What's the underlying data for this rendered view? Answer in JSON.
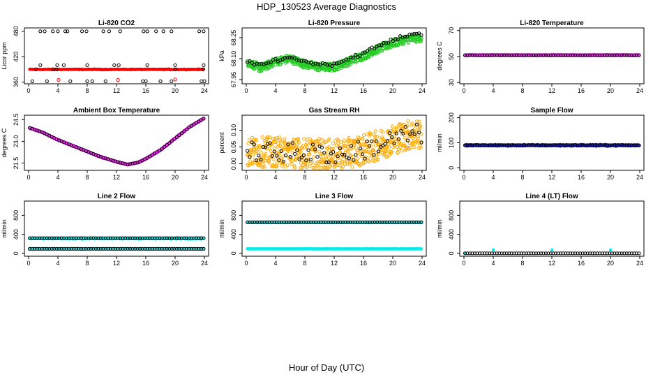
{
  "figure": {
    "title": "HDP_130523  Average Diagnostics",
    "xlabel": "Hour of Day (UTC)"
  },
  "colors": {
    "red": "#ff0000",
    "green": "#22cc22",
    "magenta": "#ff22ff",
    "orange": "#ffaa00",
    "blue": "#1a1acc",
    "cyan": "#00eeee",
    "black": "#000000"
  },
  "chart_data": [
    {
      "id": "co2",
      "type": "scatter",
      "title": "Li-820 CO2",
      "ylabel": "Licor ppm",
      "xlim": [
        0,
        24
      ],
      "ylim": [
        356,
        488
      ],
      "xticks": [
        0,
        4,
        8,
        12,
        16,
        20,
        24
      ],
      "yticks": [
        360,
        420,
        480
      ],
      "yticklabels": [
        "360",
        "420",
        "480"
      ],
      "series": [
        {
          "name": "avg",
          "color": "red",
          "shape": "dot",
          "synth": "flat",
          "base": 390,
          "amp": 1.2,
          "n": 290
        },
        {
          "name": "red-circles",
          "color": "red",
          "shape": "circle",
          "points": [
            [
              4.1,
              365
            ],
            [
              12.2,
              365
            ],
            [
              20.0,
              366
            ]
          ]
        },
        {
          "name": "black-circles",
          "color": "black",
          "shape": "circle",
          "points": [
            [
              1.0,
              390
            ],
            [
              1.6,
              480
            ],
            [
              2.2,
              480
            ],
            [
              3.3,
              480
            ],
            [
              4.0,
              480
            ],
            [
              5.0,
              480
            ],
            [
              5.3,
              480
            ],
            [
              7.3,
              480
            ],
            [
              7.9,
              480
            ],
            [
              10.2,
              480
            ],
            [
              11.0,
              480
            ],
            [
              12.5,
              480
            ],
            [
              15.7,
              480
            ],
            [
              16.2,
              480
            ],
            [
              17.4,
              480
            ],
            [
              18.4,
              480
            ],
            [
              19.5,
              480
            ],
            [
              23.3,
              480
            ],
            [
              23.9,
              480
            ],
            [
              1.6,
              400
            ],
            [
              3.3,
              390
            ],
            [
              3.8,
              390
            ],
            [
              3.9,
              400
            ],
            [
              4.8,
              400
            ],
            [
              8.0,
              400
            ],
            [
              11.7,
              400
            ],
            [
              12.3,
              400
            ],
            [
              16.2,
              400
            ],
            [
              20.0,
              400
            ],
            [
              20.0,
              390
            ],
            [
              23.9,
              400
            ],
            [
              23.8,
              390
            ],
            [
              0.5,
              362
            ],
            [
              2.5,
              362
            ],
            [
              5.7,
              362
            ],
            [
              8.0,
              362
            ],
            [
              8.7,
              362
            ],
            [
              10.5,
              362
            ],
            [
              15.6,
              362
            ],
            [
              16.0,
              362
            ],
            [
              18.0,
              362
            ],
            [
              19.5,
              362
            ],
            [
              23.6,
              362
            ],
            [
              24.0,
              362
            ]
          ]
        }
      ]
    },
    {
      "id": "pressure",
      "type": "scatter",
      "title": "Li-820 Pressure",
      "ylabel": "kPa",
      "xlim": [
        0,
        24
      ],
      "ylim": [
        67.92,
        68.32
      ],
      "xticks": [
        0,
        4,
        8,
        12,
        16,
        20,
        24
      ],
      "yticks": [
        67.95,
        68.1,
        68.25
      ],
      "yticklabels": [
        "67.95",
        "68.10",
        "68.25"
      ],
      "series": [
        {
          "name": "band",
          "color": "green",
          "shape": "circle",
          "synth": "band",
          "knots": [
            [
              0,
              68.08
            ],
            [
              2,
              68.03
            ],
            [
              4,
              68.08
            ],
            [
              6,
              68.1
            ],
            [
              8,
              68.06
            ],
            [
              10,
              68.04
            ],
            [
              12,
              68.04
            ],
            [
              14,
              68.08
            ],
            [
              16,
              68.12
            ],
            [
              18,
              68.17
            ],
            [
              20,
              68.21
            ],
            [
              22,
              68.24
            ],
            [
              24,
              68.25
            ]
          ],
          "spread": 0.028,
          "n": 560
        },
        {
          "name": "avg",
          "color": "black",
          "shape": "circle",
          "synth": "curve",
          "knots": [
            [
              0,
              68.08
            ],
            [
              2,
              68.05
            ],
            [
              4,
              68.09
            ],
            [
              6,
              68.11
            ],
            [
              8,
              68.08
            ],
            [
              10,
              68.06
            ],
            [
              12,
              68.06
            ],
            [
              14,
              68.1
            ],
            [
              16,
              68.14
            ],
            [
              18,
              68.19
            ],
            [
              20,
              68.23
            ],
            [
              22,
              68.27
            ],
            [
              24,
              68.28
            ]
          ],
          "spread": 0.018,
          "n": 75
        }
      ]
    },
    {
      "id": "temperature",
      "type": "scatter",
      "title": "Li-820 Temperature",
      "ylabel": "degrees C",
      "xlim": [
        0,
        24
      ],
      "ylim": [
        29,
        72
      ],
      "xticks": [
        0,
        4,
        8,
        12,
        16,
        20,
        24
      ],
      "yticks": [
        30,
        50,
        70
      ],
      "yticklabels": [
        "30",
        "50",
        "70"
      ],
      "series": [
        {
          "name": "band",
          "color": "magenta",
          "shape": "circle",
          "synth": "flat",
          "base": 51,
          "amp": 0.3,
          "n": 290
        },
        {
          "name": "avg",
          "color": "black",
          "shape": "circle",
          "synth": "flat",
          "base": 51,
          "amp": 0.1,
          "n": 72
        }
      ]
    },
    {
      "id": "ambient",
      "type": "scatter",
      "title": "Ambient Box Temperature",
      "ylabel": "degrees C",
      "xlim": [
        0,
        24
      ],
      "ylim": [
        21.0,
        24.8
      ],
      "xticks": [
        0,
        4,
        8,
        12,
        16,
        20,
        24
      ],
      "yticks": [
        21.5,
        23.0,
        24.5
      ],
      "yticklabels": [
        "21.5",
        "23.0",
        "24.5"
      ],
      "series": [
        {
          "name": "band",
          "color": "magenta",
          "shape": "circle",
          "synth": "curve",
          "knots": [
            [
              0,
              23.95
            ],
            [
              2,
              23.6
            ],
            [
              4,
              23.1
            ],
            [
              6,
              22.7
            ],
            [
              8,
              22.3
            ],
            [
              10,
              21.9
            ],
            [
              12,
              21.6
            ],
            [
              13.5,
              21.4
            ],
            [
              15,
              21.55
            ],
            [
              16,
              21.8
            ],
            [
              18,
              22.4
            ],
            [
              20,
              23.2
            ],
            [
              22,
              24.0
            ],
            [
              24,
              24.6
            ]
          ],
          "spread": 0.03,
          "n": 290
        },
        {
          "name": "avg",
          "color": "black",
          "shape": "circle",
          "synth": "curve",
          "knots": [
            [
              0,
              23.95
            ],
            [
              2,
              23.6
            ],
            [
              4,
              23.1
            ],
            [
              6,
              22.7
            ],
            [
              8,
              22.3
            ],
            [
              10,
              21.9
            ],
            [
              12,
              21.6
            ],
            [
              13.5,
              21.4
            ],
            [
              15,
              21.55
            ],
            [
              16,
              21.8
            ],
            [
              18,
              22.4
            ],
            [
              20,
              23.2
            ],
            [
              22,
              24.0
            ],
            [
              24,
              24.6
            ]
          ],
          "spread": 0.0,
          "n": 72
        }
      ]
    },
    {
      "id": "rh",
      "type": "scatter",
      "title": "Gas Stream RH",
      "ylabel": "percent",
      "xlim": [
        0,
        24
      ],
      "ylim": [
        -0.02,
        0.145
      ],
      "xticks": [
        0,
        4,
        8,
        12,
        16,
        20,
        24
      ],
      "yticks": [
        0.0,
        0.05,
        0.1
      ],
      "yticklabels": [
        "0.00",
        "0.05",
        "0.10"
      ],
      "series": [
        {
          "name": "band",
          "color": "orange",
          "shape": "circle",
          "synth": "band",
          "knots": [
            [
              0,
              0.035
            ],
            [
              4,
              0.035
            ],
            [
              8,
              0.032
            ],
            [
              12,
              0.028
            ],
            [
              14,
              0.032
            ],
            [
              16,
              0.042
            ],
            [
              18,
              0.055
            ],
            [
              20,
              0.072
            ],
            [
              22,
              0.085
            ],
            [
              24,
              0.09
            ]
          ],
          "spread": 0.045,
          "n": 600
        },
        {
          "name": "avg",
          "color": "black",
          "shape": "circle",
          "synth": "band",
          "knots": [
            [
              0,
              0.035
            ],
            [
              4,
              0.035
            ],
            [
              8,
              0.032
            ],
            [
              12,
              0.028
            ],
            [
              14,
              0.032
            ],
            [
              16,
              0.042
            ],
            [
              18,
              0.055
            ],
            [
              20,
              0.072
            ],
            [
              22,
              0.085
            ],
            [
              24,
              0.09
            ]
          ],
          "spread": 0.03,
          "n": 78
        }
      ]
    },
    {
      "id": "sampleflow",
      "type": "scatter",
      "title": "Sample Flow",
      "ylabel": "ml/min",
      "xlim": [
        0,
        24
      ],
      "ylim": [
        -10,
        210
      ],
      "xticks": [
        0,
        4,
        8,
        12,
        16,
        20,
        24
      ],
      "yticks": [
        0,
        100,
        200
      ],
      "yticklabels": [
        "0",
        "100",
        "200"
      ],
      "series": [
        {
          "name": "band",
          "color": "blue",
          "shape": "circle",
          "synth": "flat",
          "base": 90,
          "amp": 3,
          "n": 320
        },
        {
          "name": "avg",
          "color": "black",
          "shape": "circle",
          "synth": "flat",
          "base": 90,
          "amp": 1,
          "n": 72
        }
      ]
    },
    {
      "id": "line2",
      "type": "scatter",
      "title": "Line 2 Flow",
      "ylabel": "ml/min",
      "xlim": [
        0,
        24
      ],
      "ylim": [
        -60,
        1100
      ],
      "xticks": [
        0,
        4,
        8,
        12,
        16,
        20,
        24
      ],
      "yticks": [
        0,
        400,
        800
      ],
      "yticklabels": [
        "0",
        "400",
        "800"
      ],
      "series": [
        {
          "name": "cyan-upper",
          "color": "cyan",
          "shape": "dot",
          "synth": "flat",
          "base": 310,
          "amp": 14,
          "n": 320
        },
        {
          "name": "cyan-lower",
          "color": "cyan",
          "shape": "dot",
          "synth": "flat",
          "base": 95,
          "amp": 4,
          "n": 120
        },
        {
          "name": "avg-upper",
          "color": "black",
          "shape": "circle",
          "synth": "flat",
          "base": 320,
          "amp": 2,
          "n": 72
        },
        {
          "name": "avg-lower",
          "color": "black",
          "shape": "circle",
          "synth": "flat",
          "base": 95,
          "amp": 1,
          "n": 72
        }
      ]
    },
    {
      "id": "line3",
      "type": "scatter",
      "title": "Line 3 Flow",
      "ylabel": "ml/min",
      "xlim": [
        0,
        24
      ],
      "ylim": [
        -60,
        1100
      ],
      "xticks": [
        0,
        4,
        8,
        12,
        16,
        20,
        24
      ],
      "yticks": [
        0,
        400,
        800
      ],
      "yticklabels": [
        "0",
        "400",
        "800"
      ],
      "series": [
        {
          "name": "cyan-upper",
          "color": "cyan",
          "shape": "dot",
          "synth": "flat",
          "base": 650,
          "amp": 6,
          "n": 160
        },
        {
          "name": "cyan-lower",
          "color": "cyan",
          "shape": "dot",
          "synth": "flat",
          "base": 95,
          "amp": 4,
          "n": 320
        },
        {
          "name": "avg-upper",
          "color": "black",
          "shape": "circle",
          "synth": "flat",
          "base": 655,
          "amp": 1,
          "n": 72
        }
      ]
    },
    {
      "id": "line4",
      "type": "scatter",
      "title": "Line 4 (LT) Flow",
      "ylabel": "ml/min",
      "xlim": [
        0,
        24
      ],
      "ylim": [
        -60,
        1100
      ],
      "xticks": [
        0,
        4,
        8,
        12,
        16,
        20,
        24
      ],
      "yticks": [
        0,
        400,
        800
      ],
      "yticklabels": [
        "0",
        "400",
        "800"
      ],
      "series": [
        {
          "name": "cyan",
          "color": "cyan",
          "shape": "dot",
          "points": [
            [
              0.1,
              2
            ],
            [
              4.0,
              70
            ],
            [
              12.0,
              70
            ],
            [
              20.0,
              70
            ]
          ]
        },
        {
          "name": "avg",
          "color": "black",
          "shape": "circle",
          "synth": "flat",
          "base": 2,
          "amp": 0.5,
          "n": 72
        }
      ]
    }
  ]
}
